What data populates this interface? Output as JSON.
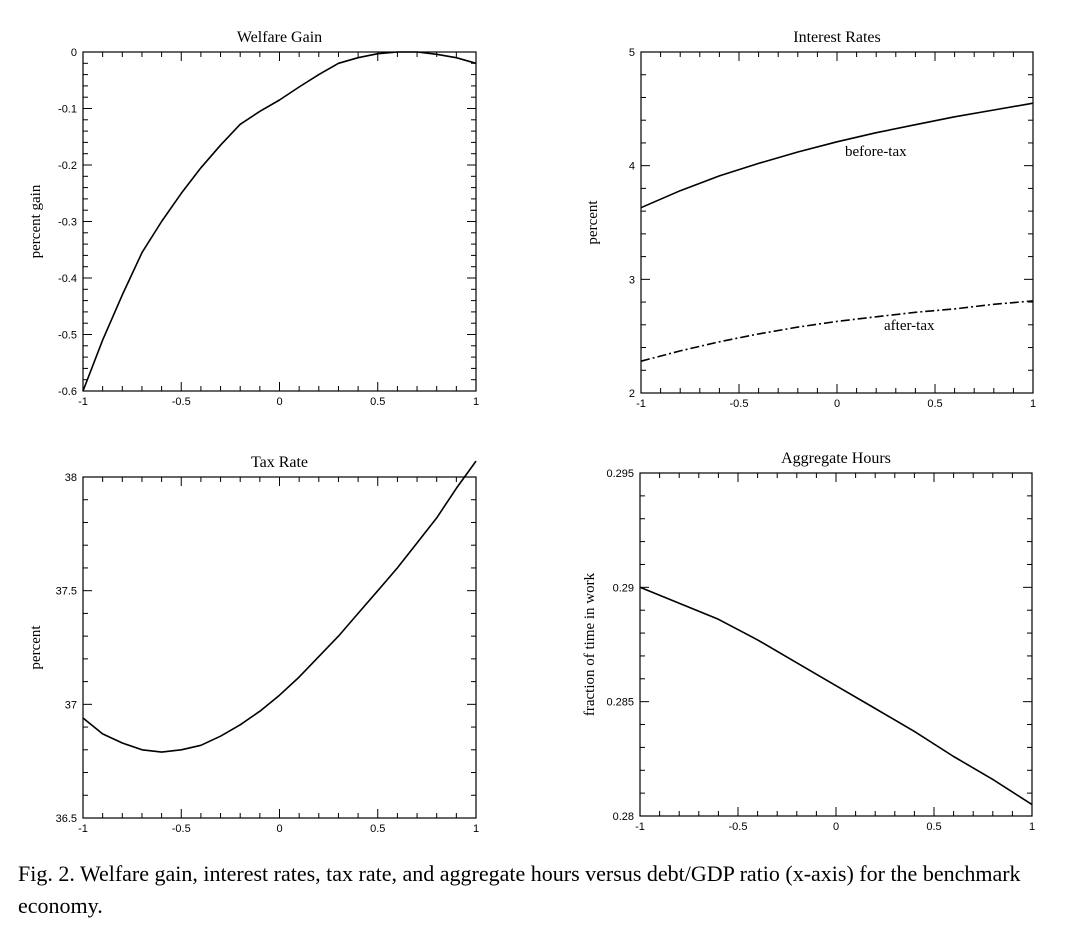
{
  "caption": {
    "text": "Fig. 2.  Welfare gain, interest rates, tax rate, and aggregate hours versus debt/GDP ratio (x-axis) for the benchmark economy."
  },
  "chart_data": [
    {
      "id": "welfare",
      "type": "line",
      "title": "Welfare Gain",
      "xlabel": "",
      "ylabel": "percent gain",
      "xlim": [
        -1,
        1
      ],
      "ylim": [
        -0.6,
        0
      ],
      "xticks": [
        -1,
        -0.5,
        0,
        0.5,
        1
      ],
      "xtick_labels": [
        "-1",
        "-0.5",
        "0",
        "0.5",
        "1"
      ],
      "yticks": [
        -0.6,
        -0.5,
        -0.4,
        -0.3,
        -0.2,
        -0.1,
        0
      ],
      "ytick_labels": [
        "-0.6",
        "-0.5",
        "-0.4",
        "-0.3",
        "-0.2",
        "-0.1",
        "0"
      ],
      "series": [
        {
          "style": "solid",
          "x": [
            -1,
            -0.9,
            -0.8,
            -0.7,
            -0.6,
            -0.5,
            -0.4,
            -0.3,
            -0.2,
            -0.1,
            0,
            0.1,
            0.2,
            0.3,
            0.4,
            0.5,
            0.6,
            0.7,
            0.8,
            0.9,
            1
          ],
          "y": [
            -0.6,
            -0.51,
            -0.43,
            -0.355,
            -0.3,
            -0.25,
            -0.205,
            -0.165,
            -0.128,
            -0.105,
            -0.085,
            -0.062,
            -0.04,
            -0.02,
            -0.01,
            -0.003,
            0,
            0,
            -0.004,
            -0.01,
            -0.02
          ]
        }
      ]
    },
    {
      "id": "interest",
      "type": "line",
      "title": "Interest Rates",
      "xlabel": "",
      "ylabel": "percent",
      "xlim": [
        -1,
        1
      ],
      "ylim": [
        2,
        5
      ],
      "xticks": [
        -1,
        -0.5,
        0,
        0.5,
        1
      ],
      "xtick_labels": [
        "-1",
        "-0.5",
        "0",
        "0.5",
        "1"
      ],
      "yticks": [
        2,
        3,
        4,
        5
      ],
      "ytick_labels": [
        "2",
        "3",
        "4",
        "5"
      ],
      "series": [
        {
          "name": "before-tax",
          "style": "solid",
          "x": [
            -1,
            -0.8,
            -0.6,
            -0.4,
            -0.2,
            0,
            0.2,
            0.4,
            0.6,
            0.8,
            1
          ],
          "y": [
            3.63,
            3.78,
            3.91,
            4.02,
            4.12,
            4.21,
            4.29,
            4.36,
            4.43,
            4.49,
            4.55
          ]
        },
        {
          "name": "after-tax",
          "style": "dashdot",
          "x": [
            -1,
            -0.8,
            -0.6,
            -0.4,
            -0.2,
            0,
            0.2,
            0.4,
            0.6,
            0.8,
            1
          ],
          "y": [
            2.28,
            2.37,
            2.45,
            2.52,
            2.58,
            2.63,
            2.67,
            2.71,
            2.74,
            2.78,
            2.81
          ]
        }
      ],
      "annotations": [
        {
          "text": "before-tax",
          "x": 0.1,
          "y": 4.12
        },
        {
          "text": "after-tax",
          "x": 0.39,
          "y": 2.47
        }
      ]
    },
    {
      "id": "tax",
      "type": "line",
      "title": "Tax Rate",
      "xlabel": "",
      "ylabel": "percent",
      "xlim": [
        -1,
        1
      ],
      "ylim": [
        36.5,
        38
      ],
      "xticks": [
        -1,
        -0.5,
        0,
        0.5,
        1
      ],
      "xtick_labels": [
        "-1",
        "-0.5",
        "0",
        "0.5",
        "1"
      ],
      "yticks": [
        36.5,
        37,
        37.5,
        38
      ],
      "ytick_labels": [
        "36.5",
        "37",
        "37.5",
        "38"
      ],
      "series": [
        {
          "style": "solid",
          "x": [
            -1,
            -0.9,
            -0.8,
            -0.7,
            -0.6,
            -0.5,
            -0.4,
            -0.3,
            -0.2,
            -0.1,
            0,
            0.1,
            0.2,
            0.3,
            0.4,
            0.5,
            0.6,
            0.7,
            0.8,
            0.9,
            1
          ],
          "y": [
            36.94,
            36.87,
            36.83,
            36.8,
            36.79,
            36.8,
            36.82,
            36.86,
            36.91,
            36.97,
            37.04,
            37.12,
            37.21,
            37.3,
            37.4,
            37.5,
            37.6,
            37.71,
            37.82,
            37.95,
            38.07
          ]
        }
      ]
    },
    {
      "id": "hours",
      "type": "line",
      "title": "Aggregate Hours",
      "xlabel": "",
      "ylabel": "fraction of time in work",
      "xlim": [
        -1,
        1
      ],
      "ylim": [
        0.28,
        0.295
      ],
      "xticks": [
        -1,
        -0.5,
        0,
        0.5,
        1
      ],
      "xtick_labels": [
        "-1",
        "-0.5",
        "0",
        "0.5",
        "1"
      ],
      "yticks": [
        0.28,
        0.285,
        0.29,
        0.295
      ],
      "ytick_labels": [
        "0.28",
        "0.285",
        "0.29",
        "0.295"
      ],
      "series": [
        {
          "style": "solid",
          "x": [
            -1,
            -0.8,
            -0.6,
            -0.4,
            -0.2,
            0,
            0.2,
            0.4,
            0.6,
            0.8,
            1
          ],
          "y": [
            0.29,
            0.2893,
            0.2886,
            0.2877,
            0.2867,
            0.2857,
            0.2847,
            0.2837,
            0.2826,
            0.2816,
            0.2805
          ]
        }
      ]
    }
  ]
}
